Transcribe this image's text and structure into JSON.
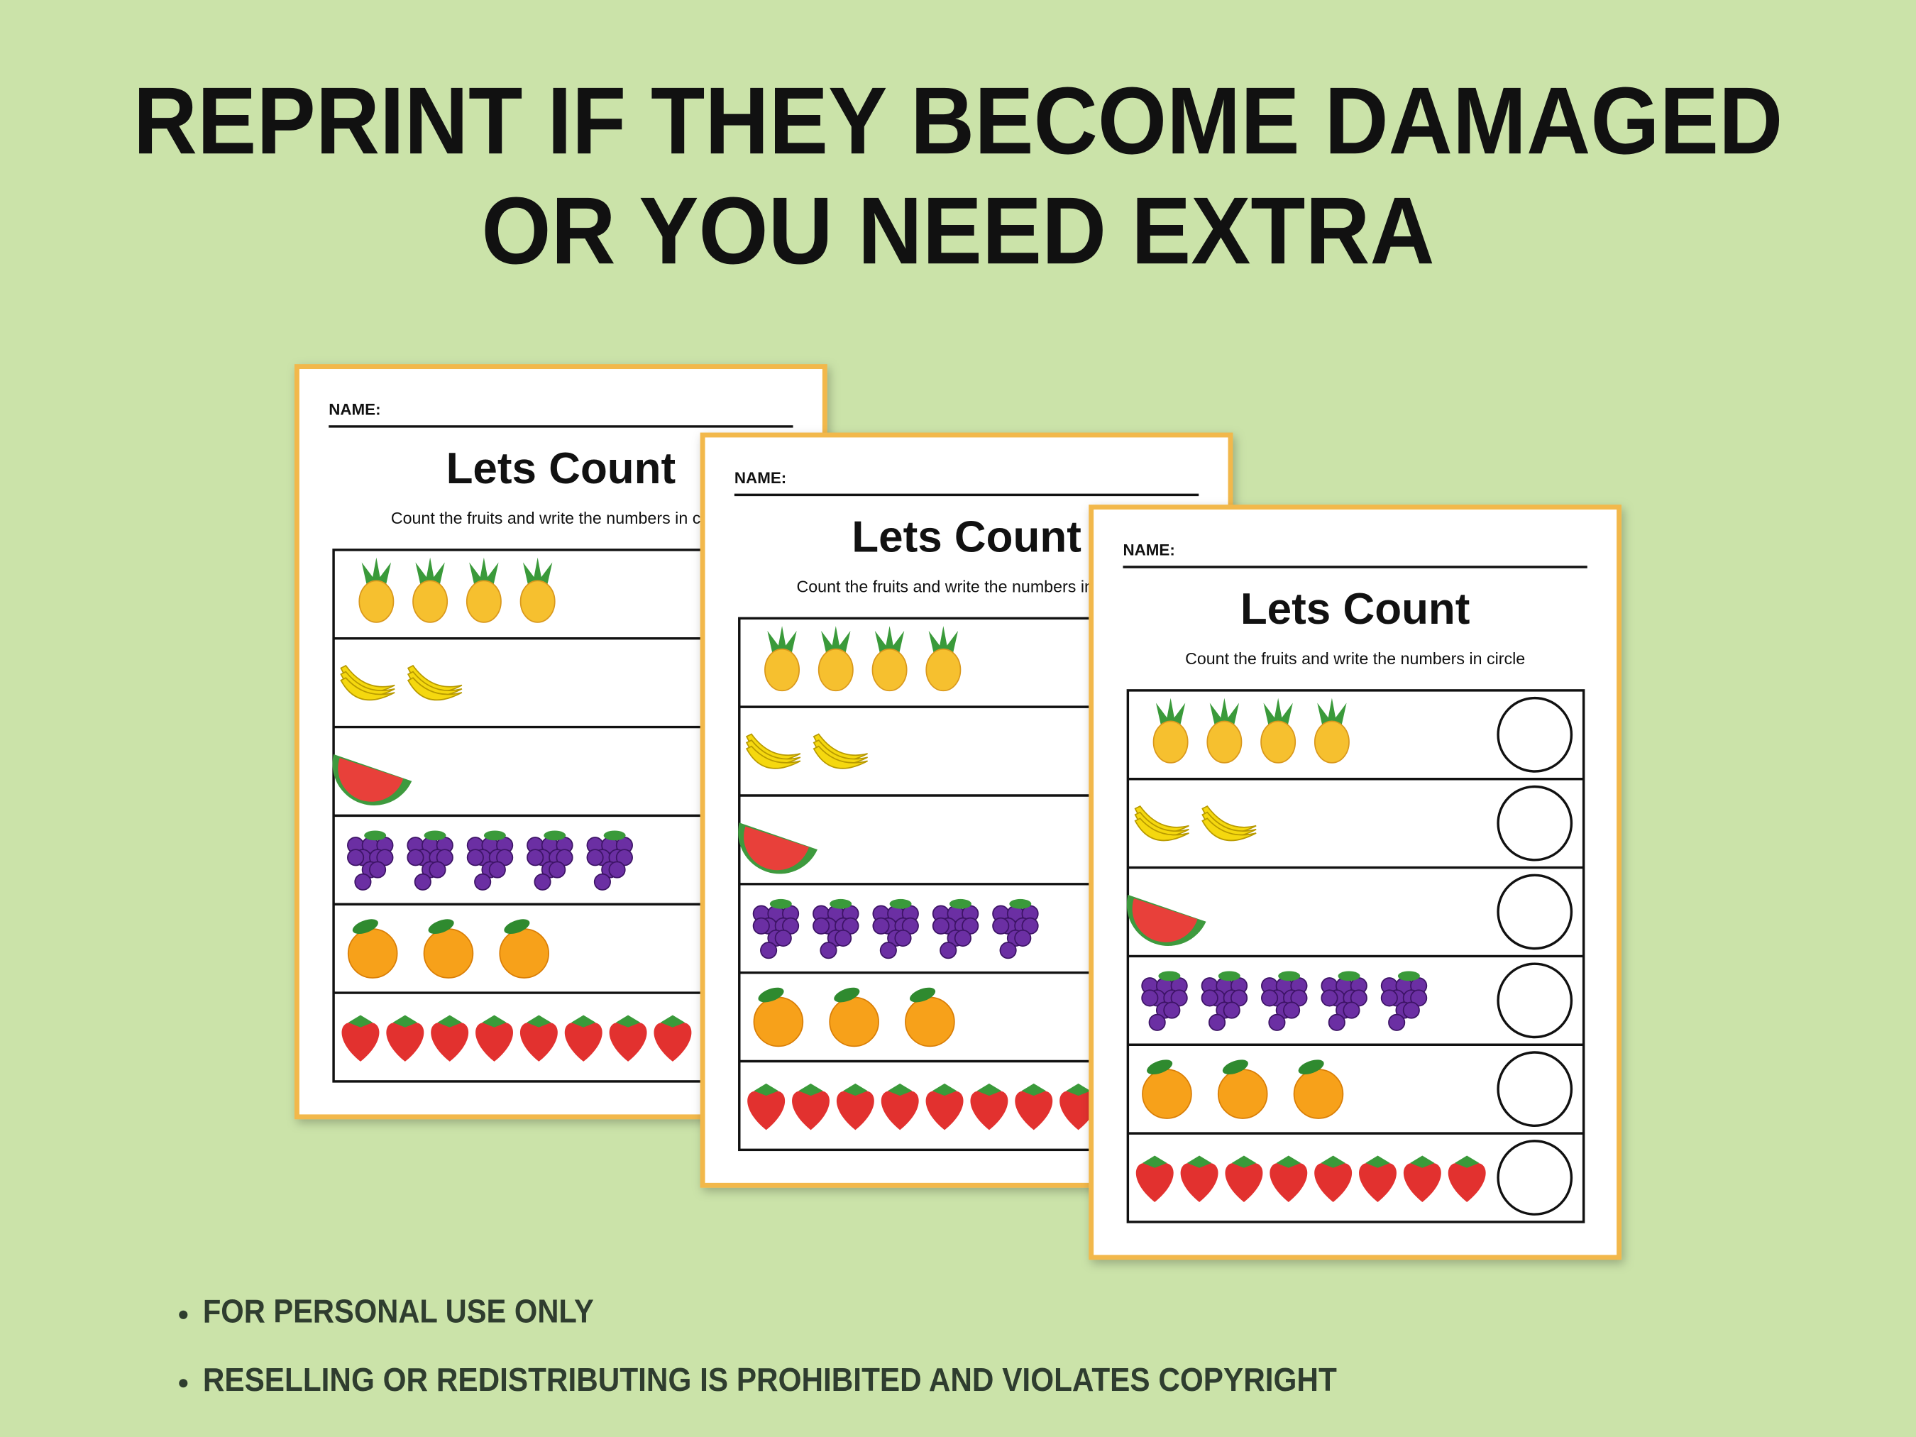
{
  "header": {
    "title_lines": [
      "REPRINT IF THEY BECOME DAMAGED",
      "OR YOU NEED EXTRA"
    ]
  },
  "worksheets": [
    {
      "name_label": "NAME:",
      "title": "Lets Count",
      "instructions": "Count the fruits and write the numbers in circle"
    },
    {
      "name_label": "NAME:",
      "title": "Lets Count",
      "instructions": "Count the fruits and write the numbers in circle"
    },
    {
      "name_label": "NAME:",
      "title": "Lets Count",
      "instructions": "Count the fruits and write the numbers in circle"
    }
  ],
  "notes": [
    "FOR PERSONAL USE ONLY",
    "RESELLING OR REDISTRIBUTING IS PROHIBITED AND VIOLATES COPYRIGHT"
  ]
}
